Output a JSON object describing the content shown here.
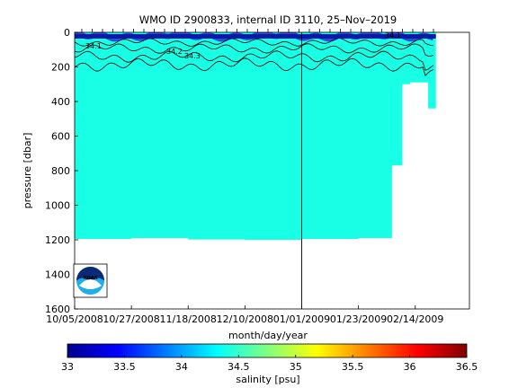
{
  "chart_data": {
    "type": "heatmap",
    "title": "WMO ID 2900833, internal ID 3110, 25–Nov–2019",
    "xlabel": "month/day/year",
    "ylabel": "pressure [dbar]",
    "x_ticks": [
      "10/05/2008",
      "10/27/2008",
      "11/18/2008",
      "12/10/2008",
      "01/01/2009",
      "01/23/2009",
      "02/14/2009"
    ],
    "x_tick_days": [
      0,
      22,
      44,
      66,
      88,
      110,
      132
    ],
    "xlim_days": [
      0,
      153
    ],
    "y_ticks": [
      0,
      200,
      400,
      600,
      800,
      1000,
      1200,
      1400,
      1600
    ],
    "ylim": [
      0,
      1600
    ],
    "y_reversed": true,
    "marker_line_day": 88,
    "field_fill_salinity": 34.4,
    "profile_depth_segments": [
      {
        "day_start": 0,
        "day_end": 22,
        "max_depth": 1195
      },
      {
        "day_start": 22,
        "day_end": 44,
        "max_depth": 1190
      },
      {
        "day_start": 44,
        "day_end": 66,
        "max_depth": 1198
      },
      {
        "day_start": 66,
        "day_end": 88,
        "max_depth": 1200
      },
      {
        "day_start": 88,
        "day_end": 110,
        "max_depth": 1195
      },
      {
        "day_start": 110,
        "day_end": 123,
        "max_depth": 1190
      },
      {
        "day_start": 123,
        "day_end": 127,
        "max_depth": 770
      },
      {
        "day_start": 127,
        "day_end": 130,
        "max_depth": 300
      },
      {
        "day_start": 130,
        "day_end": 137,
        "max_depth": 290
      },
      {
        "day_start": 137,
        "day_end": 140,
        "max_depth": 440
      }
    ],
    "contour_labels": [
      "34.1",
      "34.2",
      "34.3",
      "34.1"
    ],
    "colorbar": {
      "label": "salinity [psu]",
      "range": [
        33,
        36.5
      ],
      "ticks": [
        "33",
        "33.5",
        "34",
        "34.5",
        "35",
        "35.5",
        "36",
        "36.5"
      ],
      "colormap": "jet"
    },
    "logo_text": "NOAA"
  }
}
